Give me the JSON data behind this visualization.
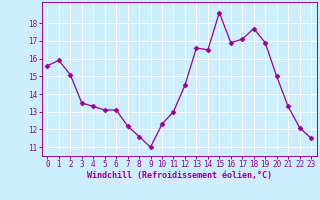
{
  "x": [
    0,
    1,
    2,
    3,
    4,
    5,
    6,
    7,
    8,
    9,
    10,
    11,
    12,
    13,
    14,
    15,
    16,
    17,
    18,
    19,
    20,
    21,
    22,
    23
  ],
  "y": [
    15.6,
    15.9,
    15.1,
    13.5,
    13.3,
    13.1,
    13.1,
    12.2,
    11.6,
    11.0,
    12.3,
    13.0,
    14.5,
    16.6,
    16.5,
    18.6,
    16.9,
    17.1,
    17.7,
    16.9,
    15.0,
    13.3,
    12.1,
    11.5
  ],
  "line_color": "#990099",
  "marker": "D",
  "marker_size": 2.5,
  "bg_color": "#cceeff",
  "grid_color": "#ffffff",
  "xlabel": "Windchill (Refroidissement éolien,°C)",
  "xlabel_color": "#990099",
  "tick_color": "#990099",
  "ylim": [
    10.5,
    19.2
  ],
  "yticks": [
    11,
    12,
    13,
    14,
    15,
    16,
    17,
    18
  ],
  "xlim": [
    -0.5,
    23.5
  ],
  "xticks": [
    0,
    1,
    2,
    3,
    4,
    5,
    6,
    7,
    8,
    9,
    10,
    11,
    12,
    13,
    14,
    15,
    16,
    17,
    18,
    19,
    20,
    21,
    22,
    23
  ]
}
